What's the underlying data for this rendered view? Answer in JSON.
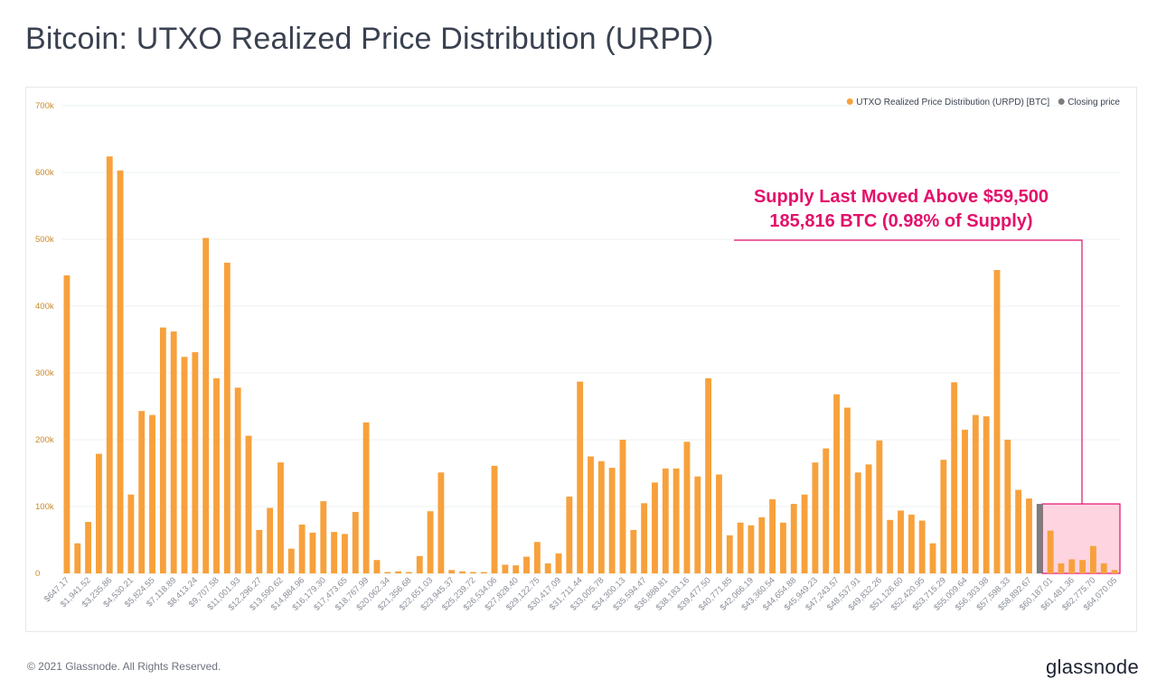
{
  "page": {
    "title": "Bitcoin: UTXO Realized Price Distribution (URPD)",
    "copyright": "© 2021 Glassnode. All Rights Reserved.",
    "brand": "glassnode"
  },
  "colors": {
    "bar": "#f7a13c",
    "closing": "#7d7d7d",
    "highlight_fill": "#fdd4e0",
    "highlight_stroke": "#e3106a",
    "tick": "#c9882b",
    "grid": "#eef0f2"
  },
  "chart_data": {
    "type": "bar",
    "title": "Bitcoin: UTXO Realized Price Distribution (URPD)",
    "ylim": [
      0,
      700000
    ],
    "y_ticks": [
      0,
      100000,
      200000,
      300000,
      400000,
      500000,
      600000,
      700000
    ],
    "y_tick_labels": [
      "0",
      "100k",
      "200k",
      "300k",
      "400k",
      "500k",
      "600k",
      "700k"
    ],
    "grid": true,
    "legend_position": "top-right",
    "legend": [
      {
        "label": "UTXO Realized Price Distribution (URPD) [BTC]",
        "color": "#f7a13c"
      },
      {
        "label": "Closing price",
        "color": "#7d7d7d"
      }
    ],
    "x_tick_labels": [
      "$647.17",
      "$1,941.52",
      "$3,235.86",
      "$4,530.21",
      "$5,824.55",
      "$7,118.89",
      "$8,413.24",
      "$9,707.58",
      "$11,001.93",
      "$12,296.27",
      "$13,590.62",
      "$14,884.96",
      "$16,179.30",
      "$17,473.65",
      "$18,767.99",
      "$20,062.34",
      "$21,356.68",
      "$22,651.03",
      "$23,945.37",
      "$25,239.72",
      "$26,534.06",
      "$27,828.40",
      "$29,122.75",
      "$30,417.09",
      "$31,711.44",
      "$33,005.78",
      "$34,300.13",
      "$35,594.47",
      "$36,888.81",
      "$38,183.16",
      "$39,477.50",
      "$40,771.85",
      "$42,066.19",
      "$43,360.54",
      "$44,654.88",
      "$45,949.23",
      "$47,243.57",
      "$48,537.91",
      "$49,832.26",
      "$51,126.60",
      "$52,420.95",
      "$53,715.29",
      "$55,009.64",
      "$56,303.98",
      "$57,598.33",
      "$58,892.67",
      "$60,187.01",
      "$61,481.36",
      "$62,775.70",
      "$64,070.05"
    ],
    "values": [
      446000,
      45000,
      77000,
      179000,
      624000,
      603000,
      118000,
      243000,
      237000,
      368000,
      362000,
      324000,
      331000,
      502000,
      292000,
      465000,
      278000,
      206000,
      65000,
      98000,
      166000,
      37000,
      73000,
      61000,
      108000,
      62000,
      59000,
      92000,
      226000,
      20000,
      2000,
      3000,
      2000,
      26000,
      93000,
      151000,
      5000,
      3000,
      2000,
      2000,
      161000,
      13000,
      12000,
      25000,
      47000,
      15000,
      30000,
      115000,
      287000,
      175000,
      168000,
      158000,
      200000,
      65000,
      105000,
      136000,
      157000,
      157000,
      197000,
      145000,
      292000,
      148000,
      57000,
      76000,
      72000,
      84000,
      111000,
      76000,
      104000,
      118000,
      166000,
      187000,
      268000,
      248000,
      151000,
      163000,
      199000,
      80000,
      94000,
      88000,
      79000,
      45000,
      170000,
      286000,
      215000,
      237000,
      235000,
      454000,
      200000,
      125000,
      112000,
      104000,
      64000,
      15000,
      21000,
      20000,
      41000,
      15000,
      5000
    ],
    "closing_price_index": 91,
    "annotation": {
      "line1": "Supply Last Moved Above $59,500",
      "line2": "185,816 BTC (0.98% of Supply)",
      "highlight_start_index": 92
    }
  }
}
